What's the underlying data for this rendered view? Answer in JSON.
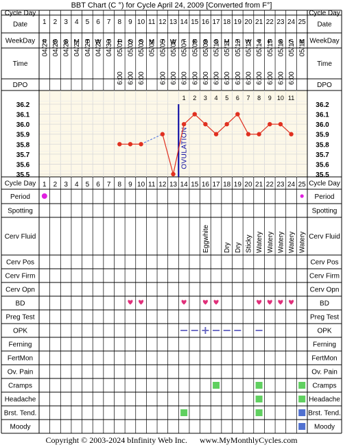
{
  "title": "BBT Chart (C °) for Cycle April 24, 2009  [Converted from F°]",
  "footer": {
    "copyright": "Copyright © 2003-2024 bInfinity Web Inc.",
    "site": "www.MyMonthlyCycles.com"
  },
  "rows": {
    "cycle_day": "Cycle Day",
    "date": "Date",
    "weekday": "WeekDay",
    "time": "Time",
    "dpo": "DPO",
    "period": "Period",
    "spotting": "Spotting",
    "cerv_fluid": "Cerv Fluid",
    "cerv_pos": "Cerv Pos",
    "cerv_firm": "Cerv Firm",
    "cerv_opn": "Cerv Opn",
    "bd": "BD",
    "preg_test": "Preg Test",
    "opk": "OPK",
    "ferning": "Ferning",
    "fertmon": "FertMon",
    "ov_pain": "Ov. Pain",
    "cramps": "Cramps",
    "headache": "Headache",
    "brst_tend": "Brst. Tend.",
    "moody": "Moody"
  },
  "colors": {
    "temp_line": "#e03020",
    "ovulation_line": "#0000a0",
    "heart": "#e0307a",
    "period_dot": "#e020e0",
    "opk": "#6060c0",
    "symptom_green": "#60d060",
    "symptom_blue": "#5070d0",
    "chart_bg": "#fdf8e8",
    "grid": "#d8d8d8"
  },
  "icons": {
    "bd": "heart-icon",
    "period": "dot-icon",
    "opk": "dash-icon",
    "opk_positive": "plus-icon",
    "symptom": "square-icon"
  },
  "days": [
    1,
    2,
    3,
    4,
    5,
    6,
    7,
    8,
    9,
    10,
    11,
    12,
    13,
    14,
    15,
    16,
    17,
    18,
    19,
    20,
    21,
    22,
    23,
    24,
    25
  ],
  "dates": [
    "04/24",
    "04/25",
    "04/26",
    "04/27",
    "04/28",
    "04/29",
    "04/30",
    "05/01",
    "05/02",
    "05/03",
    "05/04",
    "05/05",
    "05/06",
    "05/07",
    "05/08",
    "05/09",
    "05/10",
    "05/11",
    "05/12",
    "05/13",
    "05/14",
    "05/15",
    "05/16",
    "05/17",
    "05/18"
  ],
  "weekdays": [
    "F",
    "S",
    "S",
    "M",
    "T",
    "W",
    "T",
    "F",
    "S",
    "S",
    "M",
    "T",
    "W",
    "T",
    "F",
    "S",
    "S",
    "M",
    "T",
    "W",
    "T",
    "F",
    "S",
    "S",
    "M"
  ],
  "times": [
    "",
    "",
    "",
    "",
    "",
    "",
    "",
    "6:00",
    "6:00",
    "6:00",
    "",
    "6:00",
    "6:00",
    "6:00",
    "6:00",
    "6:00",
    "6:00",
    "6:00",
    "6:00",
    "6:00",
    "6:00",
    "6:00",
    "6:00",
    "6:00",
    ""
  ],
  "dpo": [
    "",
    "",
    "",
    "",
    "",
    "",
    "",
    "",
    "",
    "",
    "",
    "",
    "",
    "1",
    "2",
    "3",
    "4",
    "5",
    "6",
    "7",
    "8",
    "9",
    "10",
    "11",
    ""
  ],
  "ovulation_label": "OVULATION",
  "chart_data": {
    "type": "line",
    "x": [
      8,
      9,
      10,
      12,
      13,
      14,
      15,
      16,
      17,
      18,
      19,
      20,
      21,
      22,
      23,
      24
    ],
    "y": [
      35.8,
      35.8,
      35.8,
      35.9,
      35.5,
      36.0,
      36.1,
      36.0,
      35.9,
      36.0,
      36.1,
      35.9,
      35.9,
      36.0,
      36.0,
      35.9
    ],
    "ylim": [
      35.5,
      36.2
    ],
    "yticks": [
      "36.2",
      "36.1",
      "36.0",
      "35.9",
      "35.8",
      "35.7",
      "35.6",
      "35.5"
    ],
    "ovulation_day": 13,
    "dashed_gap": [
      10,
      12
    ]
  },
  "period_days": [
    1,
    25
  ],
  "cerv_fluid": [
    {
      "day": 16,
      "text": "Eggwhite"
    },
    {
      "day": 18,
      "text": "Dry"
    },
    {
      "day": 19,
      "text": "Dry"
    },
    {
      "day": 20,
      "text": "Sticky"
    },
    {
      "day": 21,
      "text": "Watery"
    },
    {
      "day": 22,
      "text": "Watery"
    },
    {
      "day": 23,
      "text": "Watery"
    },
    {
      "day": 24,
      "text": "Watery"
    },
    {
      "day": 25,
      "text": "Watery"
    }
  ],
  "bd_days": [
    9,
    10,
    14,
    16,
    17,
    21,
    22,
    23,
    24
  ],
  "opk": [
    {
      "day": 14,
      "mark": "-"
    },
    {
      "day": 15,
      "mark": "-"
    },
    {
      "day": 16,
      "mark": "+"
    },
    {
      "day": 17,
      "mark": "-"
    },
    {
      "day": 18,
      "mark": "-"
    },
    {
      "day": 19,
      "mark": "-"
    },
    {
      "day": 21,
      "mark": "-"
    }
  ],
  "cramps_days": [
    17,
    21,
    25
  ],
  "headache_days": [
    21,
    25
  ],
  "brst_tend_days": [
    {
      "day": 14,
      "color": "green"
    },
    {
      "day": 21,
      "color": "green"
    },
    {
      "day": 25,
      "color": "blue"
    }
  ],
  "moody_days": [
    25
  ]
}
